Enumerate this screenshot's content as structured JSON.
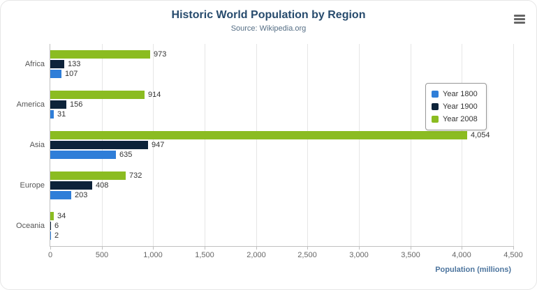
{
  "chart_data": {
    "type": "bar",
    "title": "Historic World Population by Region",
    "subtitle": "Source: Wikipedia.org",
    "categories": [
      "Africa",
      "America",
      "Asia",
      "Europe",
      "Oceania"
    ],
    "series": [
      {
        "name": "Year 1800",
        "color": "#2f7ed8",
        "values": [
          107,
          31,
          635,
          203,
          2
        ]
      },
      {
        "name": "Year 1900",
        "color": "#0d233a",
        "values": [
          133,
          156,
          947,
          408,
          6
        ]
      },
      {
        "name": "Year 2008",
        "color": "#8bbc21",
        "values": [
          973,
          914,
          4054,
          732,
          34
        ]
      }
    ],
    "xlabel": "Population (millions)",
    "xlim": [
      0,
      4500
    ],
    "xticks": [
      0,
      500,
      1000,
      1500,
      2000,
      2500,
      3000,
      3500,
      4000,
      4500
    ],
    "grid": true,
    "legend_position": "right-floating",
    "label_color": "#333333",
    "title_color": "#274b6d",
    "axis_title_color": "#4d759e"
  },
  "icons": {
    "menu": "hamburger-menu"
  }
}
